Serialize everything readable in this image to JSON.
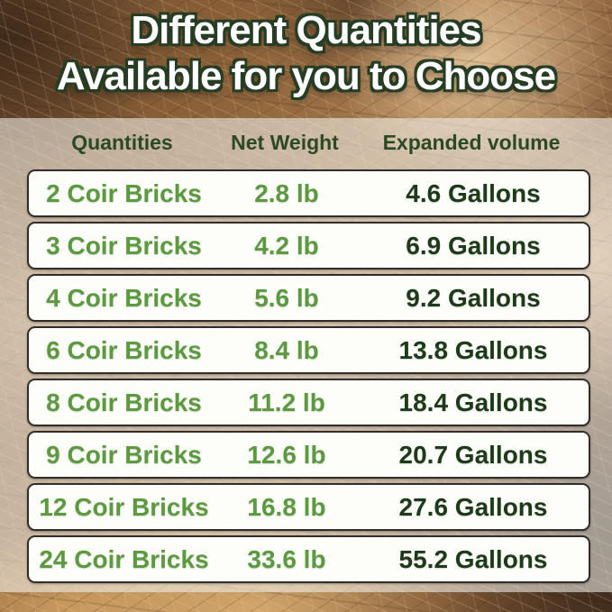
{
  "title": {
    "line1": "Different Quantities",
    "line2": "Available for you to Choose"
  },
  "chart_data": {
    "type": "table",
    "title": "Different Quantities Available for you to Choose",
    "columns": [
      "Quantities",
      "Net Weight",
      "Expanded volume"
    ],
    "rows": [
      [
        "2 Coir Bricks",
        "2.8 lb",
        "4.6 Gallons"
      ],
      [
        "3 Coir Bricks",
        "4.2 lb",
        "6.9 Gallons"
      ],
      [
        "4 Coir Bricks",
        "5.6 lb",
        "9.2 Gallons"
      ],
      [
        "6 Coir Bricks",
        "8.4 lb",
        "13.8 Gallons"
      ],
      [
        "8 Coir Bricks",
        "11.2 lb",
        "18.4 Gallons"
      ],
      [
        "9 Coir Bricks",
        "12.6 lb",
        "20.7 Gallons"
      ],
      [
        "12 Coir Bricks",
        "16.8 lb",
        "27.6 Gallons"
      ],
      [
        "24 Coir Bricks",
        "33.6 lb",
        "55.2 Gallons"
      ]
    ],
    "numeric": {
      "bricks": [
        2,
        3,
        4,
        6,
        8,
        9,
        12,
        24
      ],
      "net_weight_lb": [
        2.8,
        4.2,
        5.6,
        8.4,
        11.2,
        12.6,
        16.8,
        33.6
      ],
      "expanded_volume_gallons": [
        4.6,
        6.9,
        9.2,
        13.8,
        18.4,
        20.7,
        27.6,
        55.2
      ]
    }
  },
  "colors": {
    "accent_green": "#5c9a40",
    "header_green": "#2b4a24",
    "volume_dark_green": "#1d3a1a",
    "row_background": "#fdfdf9",
    "row_border": "#2f2e2a",
    "title_fill": "#ffffff",
    "title_outline": "#263d24",
    "wash_overlay": "rgba(242,240,233,0.58)",
    "background_brown": "#8a6038"
  }
}
